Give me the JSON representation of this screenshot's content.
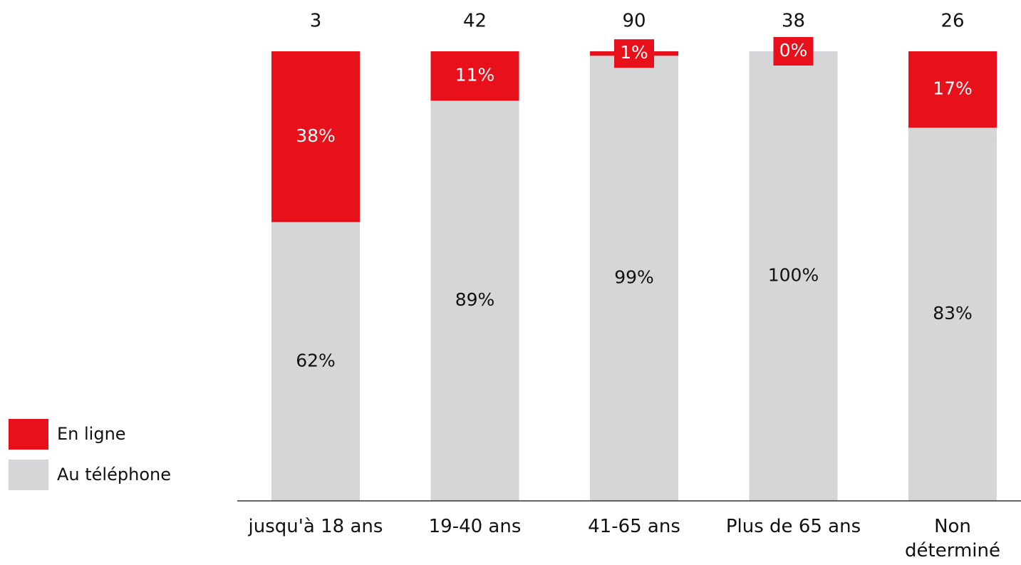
{
  "chart_data": {
    "type": "stacked_bar_100",
    "categories": [
      "jusqu'à 18 ans",
      "19-40 ans",
      "41-65 ans",
      "Plus de 65 ans",
      "Non\ndéterminé"
    ],
    "totals": [
      3,
      42,
      90,
      38,
      26
    ],
    "series": [
      {
        "name": "Au téléphone",
        "color": "#d5d6d8",
        "values": [
          62,
          89,
          99,
          100,
          83
        ],
        "value_labels": [
          "62%",
          "89%",
          "99%",
          "100%",
          "83%"
        ]
      },
      {
        "name": "En ligne",
        "color": "#e8101a",
        "values": [
          38,
          11,
          1,
          0,
          17
        ],
        "value_labels": [
          "38%",
          "11%",
          "1%",
          "0%",
          "17%"
        ]
      }
    ],
    "ylim": [
      0,
      100
    ],
    "legend": "bottom-left"
  }
}
